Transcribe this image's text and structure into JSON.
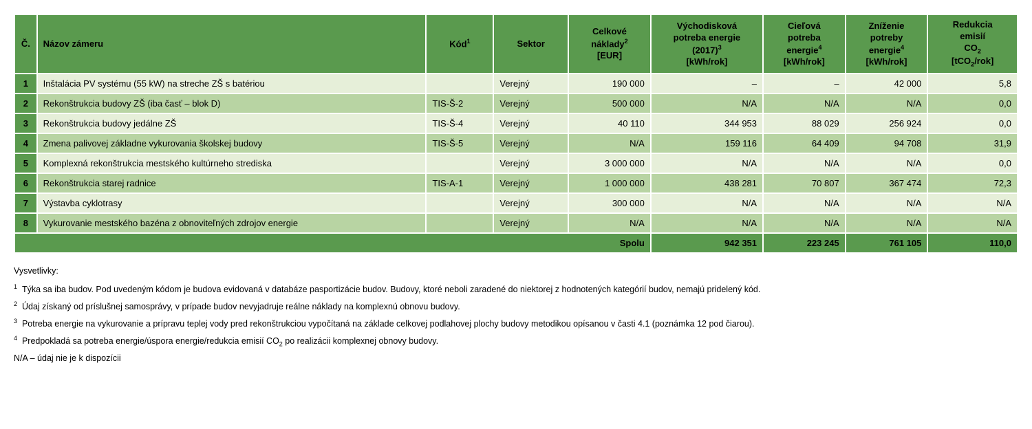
{
  "colors": {
    "header_bg": "#5a9a4e",
    "row_odd_bg": "#e6efd9",
    "row_even_bg": "#b8d4a3",
    "border": "#ffffff",
    "text": "#000000",
    "page_bg": "#ffffff"
  },
  "typography": {
    "font_family": "Arial, Helvetica, sans-serif",
    "body_size_pt": 10,
    "header_size_pt": 10,
    "notes_size_pt": 9
  },
  "table": {
    "type": "table",
    "headers": {
      "num": "Č.",
      "name": "Názov zámeru",
      "kod_html": "Kód<sup>1</sup>",
      "sektor": "Sektor",
      "cost_html": "Celkové<br>náklady<sup>2</sup><br>[EUR]",
      "e2017_html": "Východisková<br>potreba energie<br>(2017)<sup>3</sup><br>[kWh/rok]",
      "target_html": "Cieľová<br>potreba<br>energie<sup>4</sup><br>[kWh/rok]",
      "reduction_html": "Zníženie<br>potreby<br>energie<sup>4</sup><br>[kWh/rok]",
      "co2_html": "Redukcia<br>emisií<br>CO<sub>2</sub><br>[tCO<sub>2</sub>/rok]"
    },
    "column_alignment": {
      "num": "center",
      "name": "left",
      "kod": "left",
      "sektor": "left",
      "cost": "right",
      "e2017": "right",
      "target": "right",
      "reduction": "right",
      "co2": "right"
    },
    "rows": [
      {
        "num": "1",
        "name": "Inštalácia PV systému (55 kW) na streche ZŠ s batériou",
        "kod": "",
        "sektor": "Verejný",
        "cost": "190 000",
        "e2017": "–",
        "target": "–",
        "reduction": "42 000",
        "co2": "5,8"
      },
      {
        "num": "2",
        "name": "Rekonštrukcia budovy ZŠ (iba časť – blok D)",
        "kod": "TIS-Š-2",
        "sektor": "Verejný",
        "cost": "500 000",
        "e2017": "N/A",
        "target": "N/A",
        "reduction": "N/A",
        "co2": "0,0"
      },
      {
        "num": "3",
        "name": "Rekonštrukcia budovy jedálne ZŠ",
        "kod": "TIS-Š-4",
        "sektor": "Verejný",
        "cost": "40 110",
        "e2017": "344 953",
        "target": "88 029",
        "reduction": "256 924",
        "co2": "0,0"
      },
      {
        "num": "4",
        "name": "Zmena palivovej základne vykurovania školskej budovy",
        "kod": "TIS-Š-5",
        "sektor": "Verejný",
        "cost": "N/A",
        "e2017": "159 116",
        "target": "64 409",
        "reduction": "94 708",
        "co2": "31,9"
      },
      {
        "num": "5",
        "name": "Komplexná rekonštrukcia mestského kultúrneho strediska",
        "kod": "",
        "sektor": "Verejný",
        "cost": "3 000 000",
        "e2017": "N/A",
        "target": "N/A",
        "reduction": "N/A",
        "co2": "0,0"
      },
      {
        "num": "6",
        "name": "Rekonštrukcia starej radnice",
        "kod": "TIS-A-1",
        "sektor": "Verejný",
        "cost": "1 000 000",
        "e2017": "438 281",
        "target": "70 807",
        "reduction": "367 474",
        "co2": "72,3"
      },
      {
        "num": "7",
        "name": "Výstavba cyklotrasy",
        "kod": "",
        "sektor": "Verejný",
        "cost": "300 000",
        "e2017": "N/A",
        "target": "N/A",
        "reduction": "N/A",
        "co2": "N/A"
      },
      {
        "num": "8",
        "name": "Vykurovanie mestského bazéna z obnoviteľných zdrojov energie",
        "kod": "",
        "sektor": "Verejný",
        "cost": "N/A",
        "e2017": "N/A",
        "target": "N/A",
        "reduction": "N/A",
        "co2": "N/A"
      }
    ],
    "summary": {
      "label": "Spolu",
      "e2017": "942 351",
      "target": "223 245",
      "reduction": "761 105",
      "co2": "110,0"
    }
  },
  "notes": {
    "heading": "Vysvetlivky:",
    "items_html": [
      "<sup>1</sup>&nbsp;&nbsp;Týka sa iba budov. Pod uvedeným kódom je budova evidovaná v databáze pasportizácie budov. Budovy, ktoré neboli zaradené do niektorej z hodnotených kategórií budov, nemajú pridelený kód.",
      "<sup>2</sup>&nbsp;&nbsp;Údaj získaný od príslušnej samosprávy, v prípade budov nevyjadruje reálne náklady na komplexnú obnovu budovy.",
      "<sup>3</sup>&nbsp;&nbsp;Potreba energie na vykurovanie a prípravu teplej vody pred rekonštrukciou vypočítaná na základe celkovej podlahovej plochy budovy metodikou opísanou v časti 4.1 (poznámka 12 pod čiarou).",
      "<sup>4</sup>&nbsp;&nbsp;Predpokladá sa potreba energie/úspora energie/redukcia emisií CO<sub>2</sub> po realizácii komplexnej obnovy budovy."
    ],
    "na_text": "N/A – údaj nie je k dispozícii"
  }
}
